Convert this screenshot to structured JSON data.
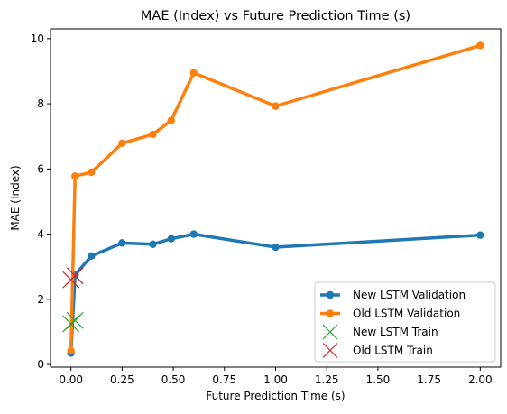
{
  "chart_data": {
    "type": "line",
    "title": "MAE (Index) vs Future Prediction Time (s)",
    "xlabel": "Future Prediction Time (s)",
    "ylabel": "MAE (Index)",
    "xlim": [
      -0.1,
      2.1
    ],
    "ylim": [
      -0.08,
      10.3
    ],
    "x_ticks": [
      0.0,
      0.25,
      0.5,
      0.75,
      1.0,
      1.25,
      1.5,
      1.75,
      2.0
    ],
    "x_tick_labels": [
      "0.00",
      "0.25",
      "0.50",
      "0.75",
      "1.00",
      "1.25",
      "1.50",
      "1.75",
      "2.00"
    ],
    "y_ticks": [
      0,
      2,
      4,
      6,
      8,
      10
    ],
    "y_tick_labels": [
      "0",
      "2",
      "4",
      "6",
      "8",
      "10"
    ],
    "grid": false,
    "legend_position": "lower-right",
    "series": [
      {
        "name": "New LSTM Validation",
        "kind": "line",
        "marker": "circle",
        "color": "#1f77b4",
        "x": [
          0.0,
          0.02,
          0.1,
          0.25,
          0.4,
          0.49,
          0.6,
          1.0,
          2.0
        ],
        "y": [
          0.35,
          2.75,
          3.33,
          3.73,
          3.69,
          3.86,
          4.0,
          3.6,
          3.97
        ]
      },
      {
        "name": "Old LSTM Validation",
        "kind": "line",
        "marker": "circle",
        "color": "#ff7f0e",
        "x": [
          0.0,
          0.02,
          0.1,
          0.25,
          0.4,
          0.49,
          0.6,
          1.0,
          2.0
        ],
        "y": [
          0.42,
          5.78,
          5.9,
          6.79,
          7.06,
          7.49,
          8.95,
          7.93,
          9.79
        ]
      },
      {
        "name": "New LSTM Train",
        "kind": "scatter",
        "marker": "x",
        "color": "#2ca02c",
        "x": [
          0.0,
          0.02
        ],
        "y": [
          1.25,
          1.35
        ]
      },
      {
        "name": "Old LSTM Train",
        "kind": "scatter",
        "marker": "x",
        "color": "#d62728",
        "x": [
          0.0,
          0.02
        ],
        "y": [
          2.6,
          2.72
        ]
      }
    ]
  }
}
